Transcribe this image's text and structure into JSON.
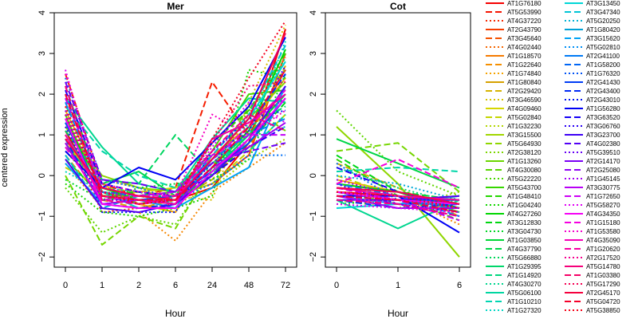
{
  "chart_data": [
    {
      "type": "line",
      "title": "Mer",
      "xlabel": "Hour",
      "ylabel": "centered expression",
      "x": [
        "0",
        "1",
        "2",
        "6",
        "24",
        "48",
        "72"
      ],
      "yticks": [
        -2,
        -1,
        0,
        1,
        2,
        3,
        4
      ],
      "ylim": [
        -2.25,
        4.0
      ],
      "grid": false,
      "series": [
        {
          "values": [
            1.1,
            -0.5,
            -0.7,
            -0.6,
            -0.3,
            0.8,
            3.6
          ]
        },
        {
          "values": [
            2.5,
            -0.2,
            -0.5,
            -0.3,
            2.3,
            1.0,
            2.6
          ]
        },
        {
          "values": [
            1.0,
            -0.9,
            -0.8,
            -0.7,
            0.2,
            1.5,
            2.9
          ]
        },
        {
          "values": [
            0.8,
            -0.4,
            -0.6,
            -0.5,
            -0.2,
            0.5,
            3.0
          ]
        },
        {
          "values": [
            1.4,
            -0.3,
            -0.5,
            -0.6,
            0.0,
            0.7,
            2.2
          ]
        },
        {
          "values": [
            0.3,
            -0.8,
            -0.9,
            -1.6,
            -0.4,
            0.2,
            0.8
          ]
        },
        {
          "values": [
            1.6,
            -0.2,
            -0.7,
            -0.9,
            0.5,
            1.2,
            2.4
          ]
        },
        {
          "values": [
            0.5,
            -0.6,
            -0.8,
            -0.6,
            -0.1,
            0.9,
            2.7
          ]
        },
        {
          "values": [
            1.9,
            -0.1,
            -0.3,
            -0.5,
            -0.6,
            1.8,
            3.7
          ]
        },
        {
          "values": [
            0.9,
            -0.5,
            -0.4,
            -0.3,
            0.3,
            1.0,
            2.0
          ]
        },
        {
          "values": [
            0.2,
            -0.3,
            -0.4,
            -0.5,
            -0.2,
            0.6,
            1.5
          ]
        },
        {
          "values": [
            0.6,
            -0.4,
            -0.5,
            -0.7,
            -0.3,
            0.4,
            0.9
          ]
        },
        {
          "values": [
            1.2,
            0.0,
            -0.3,
            -0.4,
            0.4,
            1.4,
            2.3
          ]
        },
        {
          "values": [
            0.0,
            -1.7,
            -1.0,
            -1.3,
            0.2,
            1.7,
            1.1
          ]
        },
        {
          "values": [
            -0.3,
            -1.4,
            -1.0,
            -1.2,
            0.1,
            1.6,
            2.6
          ]
        },
        {
          "values": [
            1.5,
            -0.6,
            -0.5,
            -0.4,
            0.6,
            2.0,
            2.1
          ]
        },
        {
          "values": [
            2.2,
            -0.4,
            -0.7,
            -0.5,
            0.8,
            1.6,
            3.0
          ]
        },
        {
          "values": [
            -0.2,
            -0.9,
            -1.0,
            -0.8,
            -0.5,
            2.6,
            2.4
          ]
        },
        {
          "values": [
            1.3,
            -0.3,
            -0.6,
            -0.7,
            0.2,
            1.1,
            3.1
          ]
        },
        {
          "values": [
            0.4,
            -0.5,
            -0.4,
            -0.6,
            0.0,
            0.8,
            1.8
          ]
        },
        {
          "values": [
            -0.1,
            -0.6,
            -0.3,
            -0.2,
            -0.1,
            0.4,
            2.5
          ]
        },
        {
          "values": [
            0.7,
            -0.2,
            0.1,
            -0.5,
            0.1,
            1.0,
            2.0
          ]
        },
        {
          "values": [
            1.1,
            -0.1,
            -0.2,
            1.0,
            0.0,
            1.2,
            1.7
          ]
        },
        {
          "values": [
            0.8,
            -0.4,
            -0.6,
            -0.6,
            0.0,
            1.3,
            2.9
          ]
        },
        {
          "values": [
            1.9,
            0.7,
            -0.2,
            -0.4,
            0.9,
            1.9,
            1.8
          ]
        },
        {
          "values": [
            1.7,
            0.6,
            0.0,
            -0.3,
            0.5,
            0.6,
            1.5
          ]
        },
        {
          "values": [
            0.1,
            -0.4,
            -0.6,
            -0.5,
            0.3,
            1.0,
            3.3
          ]
        },
        {
          "values": [
            1.0,
            -0.4,
            -0.8,
            -0.8,
            0.4,
            1.4,
            2.8
          ]
        },
        {
          "values": [
            0.5,
            -0.8,
            -0.5,
            -0.6,
            0.5,
            1.5,
            3.2
          ]
        },
        {
          "values": [
            2.0,
            -0.3,
            -0.4,
            -0.7,
            0.2,
            0.9,
            1.2
          ]
        },
        {
          "values": [
            0.3,
            -0.7,
            -0.6,
            -0.8,
            -0.3,
            0.2,
            2.2
          ]
        },
        {
          "values": [
            1.8,
            -0.4,
            -0.5,
            -0.4,
            0.4,
            1.0,
            1.4
          ]
        },
        {
          "values": [
            2.4,
            -0.1,
            -0.3,
            -0.6,
            -0.2,
            0.5,
            0.5
          ]
        },
        {
          "values": [
            1.3,
            -0.5,
            -0.6,
            -0.5,
            0.1,
            0.8,
            1.9
          ]
        },
        {
          "values": [
            0.9,
            -0.7,
            -0.8,
            -0.7,
            0.4,
            1.2,
            2.5
          ]
        },
        {
          "values": [
            1.5,
            -0.9,
            -0.9,
            -0.9,
            0.6,
            1.4,
            1.6
          ]
        },
        {
          "values": [
            0.6,
            -0.3,
            0.2,
            -0.1,
            0.8,
            1.7,
            3.4
          ]
        },
        {
          "values": [
            2.1,
            -0.2,
            -0.4,
            -0.5,
            0.0,
            0.7,
            1.2
          ]
        },
        {
          "values": [
            1.2,
            -0.6,
            -0.6,
            -0.6,
            0.3,
            1.1,
            2.7
          ]
        },
        {
          "values": [
            0.4,
            -0.8,
            -0.9,
            -0.7,
            0.0,
            0.9,
            2.2
          ]
        },
        {
          "values": [
            2.3,
            -0.1,
            -0.2,
            -0.4,
            0.3,
            0.6,
            0.8
          ]
        },
        {
          "values": [
            1.6,
            -0.4,
            -0.5,
            -0.4,
            0.6,
            1.3,
            1.9
          ]
        },
        {
          "values": [
            0.8,
            -0.7,
            -0.6,
            -0.7,
            0.2,
            0.7,
            1.3
          ]
        },
        {
          "values": [
            1.9,
            -0.3,
            -0.5,
            -0.4,
            0.5,
            1.0,
            1.0
          ]
        },
        {
          "values": [
            2.6,
            -0.5,
            -0.7,
            -0.6,
            0.7,
            1.8,
            1.3
          ]
        },
        {
          "values": [
            1.4,
            -0.7,
            -0.8,
            -0.8,
            0.1,
            0.9,
            1.9
          ]
        },
        {
          "values": [
            0.7,
            -0.6,
            -0.5,
            -0.5,
            0.4,
            1.2,
            2.1
          ]
        },
        {
          "values": [
            2.5,
            -0.2,
            -0.4,
            -0.5,
            1.5,
            1.0,
            1.6
          ]
        },
        {
          "values": [
            1.0,
            -0.5,
            -0.6,
            -0.7,
            0.9,
            1.3,
            2.0
          ]
        },
        {
          "values": [
            2.2,
            -0.6,
            -0.7,
            -0.5,
            0.6,
            1.5,
            1.1
          ]
        },
        {
          "values": [
            1.5,
            -0.4,
            -0.6,
            -0.6,
            0.8,
            2.2,
            2.3
          ]
        },
        {
          "values": [
            0.9,
            -0.3,
            -0.5,
            -0.6,
            0.4,
            1.4,
            3.5
          ]
        },
        {
          "values": [
            2.0,
            -0.5,
            -0.6,
            -0.6,
            0.2,
            1.2,
            2.6
          ]
        },
        {
          "values": [
            1.7,
            -0.4,
            -0.7,
            -0.6,
            0.9,
            2.4,
            3.8
          ]
        }
      ]
    },
    {
      "type": "line",
      "title": "Cot",
      "xlabel": "Hour",
      "x": [
        "0",
        "1",
        "6"
      ],
      "yticks": [
        -2,
        -1,
        0,
        1,
        2,
        3,
        4
      ],
      "ylim": [
        -2.25,
        4.0
      ],
      "grid": false,
      "series": [
        {
          "values": [
            -0.4,
            -0.5,
            -0.7
          ]
        },
        {
          "values": [
            -0.3,
            -0.6,
            -0.8
          ]
        },
        {
          "values": [
            -0.5,
            -0.6,
            -0.6
          ]
        },
        {
          "values": [
            -0.2,
            -0.4,
            -0.9
          ]
        },
        {
          "values": [
            -0.6,
            -0.7,
            -0.5
          ]
        },
        {
          "values": [
            -0.4,
            -0.5,
            -1.2
          ]
        },
        {
          "values": [
            -0.1,
            -0.4,
            -0.8
          ]
        },
        {
          "values": [
            0.3,
            -0.3,
            -1.0
          ]
        },
        {
          "values": [
            -0.5,
            -0.6,
            -0.7
          ]
        },
        {
          "values": [
            -0.3,
            -0.5,
            -0.6
          ]
        },
        {
          "values": [
            0.0,
            -0.5,
            -0.8
          ]
        },
        {
          "values": [
            -0.6,
            -0.8,
            -0.4
          ]
        },
        {
          "values": [
            1.2,
            -0.2,
            -2.0
          ]
        },
        {
          "values": [
            0.6,
            0.8,
            -0.4
          ]
        },
        {
          "values": [
            1.6,
            0.1,
            -0.5
          ]
        },
        {
          "values": [
            -0.3,
            -0.4,
            -0.9
          ]
        },
        {
          "values": [
            0.4,
            -0.5,
            -1.1
          ]
        },
        {
          "values": [
            -0.4,
            -0.7,
            -0.6
          ]
        },
        {
          "values": [
            -0.2,
            -0.4,
            -0.8
          ]
        },
        {
          "values": [
            0.5,
            -0.4,
            -0.6
          ]
        },
        {
          "values": [
            -0.7,
            -0.6,
            -0.5
          ]
        },
        {
          "values": [
            0.9,
            0.3,
            -0.3
          ]
        },
        {
          "values": [
            -0.5,
            -0.6,
            -0.9
          ]
        },
        {
          "values": [
            0.2,
            -0.3,
            -0.7
          ]
        },
        {
          "values": [
            -0.6,
            -1.3,
            -0.6
          ]
        },
        {
          "values": [
            0.1,
            0.2,
            0.1
          ]
        },
        {
          "values": [
            -0.4,
            -0.6,
            -0.8
          ]
        },
        {
          "values": [
            -0.8,
            -0.7,
            -0.5
          ]
        },
        {
          "values": [
            -0.3,
            -0.5,
            -0.9
          ]
        },
        {
          "values": [
            0.0,
            -0.2,
            -0.6
          ]
        },
        {
          "values": [
            -0.5,
            -0.7,
            -0.7
          ]
        },
        {
          "values": [
            -0.2,
            -0.5,
            -1.0
          ]
        },
        {
          "values": [
            0.3,
            -0.6,
            -0.8
          ]
        },
        {
          "values": [
            -0.4,
            -0.6,
            -0.6
          ]
        },
        {
          "values": [
            -0.6,
            -0.8,
            -0.7
          ]
        },
        {
          "values": [
            -0.3,
            -0.4,
            -0.8
          ]
        },
        {
          "values": [
            -0.5,
            -0.5,
            -1.4
          ]
        },
        {
          "values": [
            0.2,
            -0.4,
            -0.7
          ]
        },
        {
          "values": [
            -0.2,
            -0.7,
            -0.9
          ]
        },
        {
          "values": [
            -0.6,
            -0.6,
            -0.5
          ]
        },
        {
          "values": [
            -0.4,
            -0.7,
            -1.0
          ]
        },
        {
          "values": [
            -0.1,
            -0.5,
            -0.7
          ]
        },
        {
          "values": [
            -0.5,
            -0.8,
            -0.8
          ]
        },
        {
          "values": [
            -0.3,
            -0.6,
            -1.1
          ]
        },
        {
          "values": [
            -0.7,
            -0.8,
            -0.9
          ]
        },
        {
          "values": [
            -0.4,
            -0.6,
            -0.7
          ]
        },
        {
          "values": [
            -0.2,
            0.4,
            -0.3
          ]
        },
        {
          "values": [
            -0.5,
            -0.7,
            -0.9
          ]
        },
        {
          "values": [
            -0.3,
            -0.5,
            -0.6
          ]
        },
        {
          "values": [
            -0.6,
            -0.7,
            -1.0
          ]
        },
        {
          "values": [
            -0.4,
            -0.6,
            -0.8
          ]
        },
        {
          "values": [
            -0.3,
            -0.4,
            -0.7
          ]
        },
        {
          "values": [
            -0.5,
            -0.6,
            -0.9
          ]
        },
        {
          "values": [
            -0.4,
            -0.5,
            -0.8
          ]
        }
      ]
    }
  ],
  "legend": {
    "position": "right",
    "entries": [
      "AT1G76180",
      "AT5G53990",
      "AT4G37220",
      "AT2G43790",
      "AT3G45640",
      "AT4G02440",
      "AT1G18570",
      "AT1G22640",
      "AT1G74840",
      "AT1G80840",
      "AT2G29420",
      "AT3G46590",
      "AT4G09460",
      "AT5G02840",
      "AT1G32230",
      "AT3G15500",
      "AT5G64930",
      "AT2G38120",
      "AT1G13260",
      "AT4G30080",
      "AT5G22220",
      "AT5G43700",
      "AT1G48410",
      "AT1G04240",
      "AT4G27260",
      "AT3G12830",
      "AT3G04730",
      "AT1G03850",
      "AT4G37790",
      "AT5G66880",
      "AT1G29395",
      "AT1G14920",
      "AT4G30270",
      "AT5G06100",
      "AT1G10210",
      "AT1G27320",
      "AT3G13450",
      "AT3G47340",
      "AT5G20250",
      "AT1G80420",
      "AT3G15620",
      "AT5G02810",
      "AT2G41100",
      "AT1G58200",
      "AT1G76320",
      "AT2G41430",
      "AT2G43400",
      "AT2G43010",
      "AT1G56280",
      "AT3G63520",
      "AT3G06760",
      "AT3G23700",
      "AT4G02380",
      "AT5G39510",
      "AT2G14170",
      "AT2G25080",
      "AT1G45145",
      "AT3G30775",
      "AT1G72650",
      "AT5G58270",
      "AT4G34350",
      "AT1G15180",
      "AT1G53580",
      "AT4G35090",
      "AT1G20620",
      "AT2G17520",
      "AT5G14780",
      "AT1G03380",
      "AT5G17290",
      "AT2G45170",
      "AT5G04720",
      "AT5G38850"
    ]
  }
}
